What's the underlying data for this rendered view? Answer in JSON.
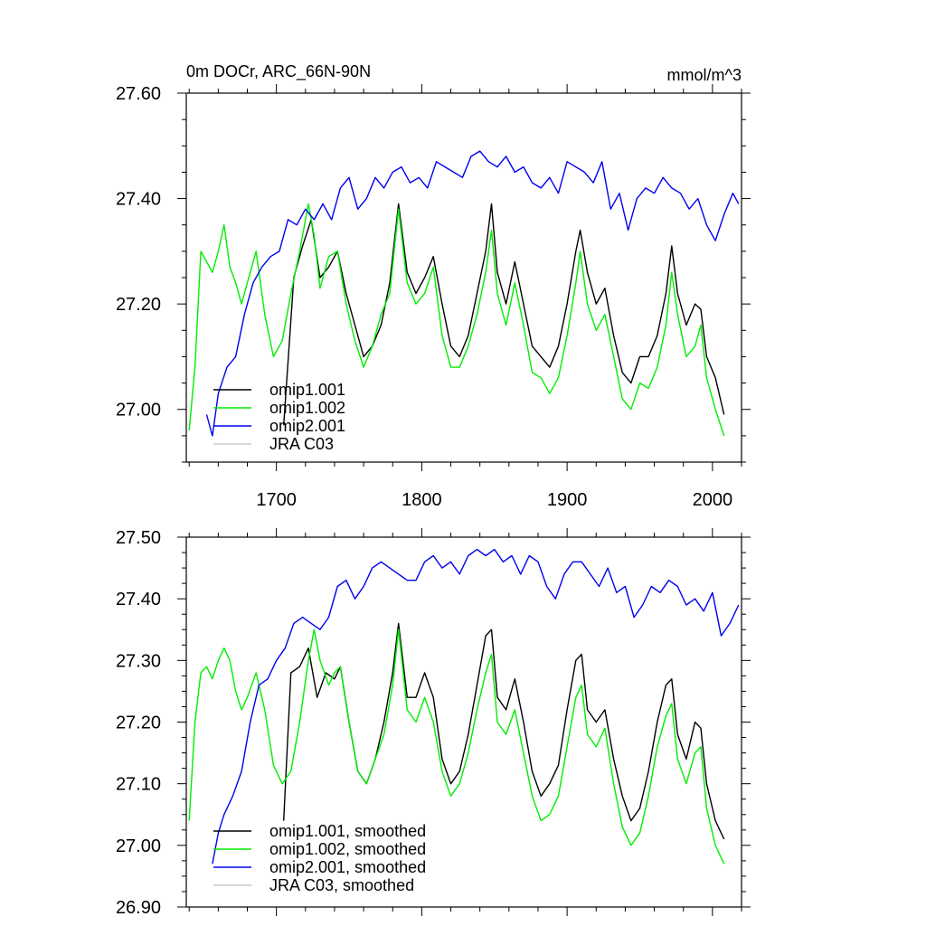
{
  "chart_data": [
    {
      "type": "line",
      "title": "0m DOCr, ARC_66N-90N",
      "units": "mmol/m^3",
      "xlim": [
        1638,
        2020
      ],
      "ylim": [
        26.9,
        27.6
      ],
      "yticks": [
        "27.00",
        "27.20",
        "27.40",
        "27.60"
      ],
      "ytick_values": [
        27.0,
        27.2,
        27.4,
        27.6
      ],
      "xticks": [
        "1700",
        "1800",
        "1900",
        "2000"
      ],
      "xtick_values": [
        1700,
        1800,
        1900,
        2000
      ],
      "legend": {
        "position": "bottom-left",
        "entries": [
          "omip1.001",
          "omip1.002",
          "omip2.001",
          "JRA C03"
        ]
      },
      "series": [
        {
          "name": "omip1.001",
          "color": "#000000",
          "x": [
            1705,
            1712,
            1718,
            1724,
            1730,
            1736,
            1742,
            1748,
            1754,
            1760,
            1766,
            1772,
            1778,
            1784,
            1790,
            1796,
            1802,
            1808,
            1814,
            1820,
            1826,
            1832,
            1838,
            1844,
            1848,
            1852,
            1858,
            1864,
            1870,
            1876,
            1882,
            1888,
            1894,
            1900,
            1906,
            1909,
            1914,
            1920,
            1926,
            1932,
            1938,
            1944,
            1950,
            1956,
            1962,
            1968,
            1972,
            1976,
            1982,
            1988,
            1992,
            1996,
            2002,
            2008
          ],
          "y": [
            26.97,
            27.25,
            27.31,
            27.36,
            27.25,
            27.27,
            27.3,
            27.22,
            27.16,
            27.1,
            27.12,
            27.16,
            27.24,
            27.39,
            27.26,
            27.22,
            27.25,
            27.29,
            27.2,
            27.12,
            27.1,
            27.14,
            27.22,
            27.3,
            27.39,
            27.26,
            27.2,
            27.28,
            27.2,
            27.12,
            27.1,
            27.08,
            27.12,
            27.2,
            27.3,
            27.34,
            27.26,
            27.2,
            27.23,
            27.14,
            27.07,
            27.05,
            27.1,
            27.1,
            27.14,
            27.22,
            27.31,
            27.22,
            27.16,
            27.2,
            27.19,
            27.1,
            27.06,
            26.99
          ]
        },
        {
          "name": "omip1.002",
          "color": "#00ee00",
          "x": [
            1640,
            1644,
            1648,
            1652,
            1656,
            1660,
            1664,
            1668,
            1672,
            1676,
            1680,
            1686,
            1692,
            1698,
            1704,
            1710,
            1716,
            1722,
            1726,
            1730,
            1736,
            1742,
            1748,
            1754,
            1760,
            1766,
            1772,
            1778,
            1784,
            1790,
            1796,
            1802,
            1808,
            1814,
            1820,
            1826,
            1832,
            1838,
            1844,
            1848,
            1852,
            1858,
            1864,
            1870,
            1876,
            1882,
            1888,
            1894,
            1900,
            1906,
            1909,
            1914,
            1920,
            1926,
            1932,
            1938,
            1944,
            1950,
            1956,
            1962,
            1968,
            1972,
            1976,
            1982,
            1988,
            1992,
            1996,
            2002,
            2008
          ],
          "y": [
            26.96,
            27.08,
            27.3,
            27.28,
            27.26,
            27.3,
            27.35,
            27.27,
            27.24,
            27.2,
            27.24,
            27.3,
            27.18,
            27.1,
            27.13,
            27.22,
            27.3,
            27.39,
            27.33,
            27.23,
            27.29,
            27.3,
            27.2,
            27.13,
            27.08,
            27.12,
            27.18,
            27.22,
            27.38,
            27.24,
            27.2,
            27.22,
            27.27,
            27.14,
            27.08,
            27.08,
            27.12,
            27.18,
            27.26,
            27.34,
            27.22,
            27.16,
            27.24,
            27.16,
            27.07,
            27.06,
            27.03,
            27.06,
            27.14,
            27.24,
            27.3,
            27.2,
            27.15,
            27.18,
            27.1,
            27.02,
            27.0,
            27.05,
            27.04,
            27.08,
            27.16,
            27.26,
            27.18,
            27.1,
            27.12,
            27.16,
            27.06,
            27.0,
            26.95
          ]
        },
        {
          "name": "omip2.001",
          "color": "#0000ee",
          "x": [
            1652,
            1656,
            1660,
            1666,
            1672,
            1678,
            1684,
            1690,
            1696,
            1702,
            1708,
            1714,
            1720,
            1726,
            1732,
            1738,
            1744,
            1750,
            1756,
            1762,
            1768,
            1774,
            1780,
            1786,
            1792,
            1798,
            1804,
            1810,
            1816,
            1822,
            1828,
            1834,
            1840,
            1846,
            1852,
            1858,
            1864,
            1870,
            1876,
            1882,
            1888,
            1894,
            1900,
            1906,
            1912,
            1918,
            1924,
            1930,
            1936,
            1942,
            1948,
            1954,
            1960,
            1966,
            1972,
            1978,
            1984,
            1990,
            1996,
            2002,
            2008,
            2014,
            2018
          ],
          "y": [
            26.99,
            26.95,
            27.03,
            27.08,
            27.1,
            27.18,
            27.24,
            27.27,
            27.29,
            27.3,
            27.36,
            27.35,
            27.38,
            27.36,
            27.39,
            27.36,
            27.42,
            27.44,
            27.38,
            27.4,
            27.44,
            27.42,
            27.45,
            27.46,
            27.43,
            27.44,
            27.42,
            27.47,
            27.46,
            27.45,
            27.44,
            27.48,
            27.49,
            27.47,
            27.46,
            27.48,
            27.45,
            27.46,
            27.43,
            27.42,
            27.44,
            27.41,
            27.47,
            27.46,
            27.45,
            27.43,
            27.47,
            27.38,
            27.41,
            27.34,
            27.4,
            27.42,
            27.41,
            27.44,
            27.42,
            27.41,
            27.38,
            27.4,
            27.35,
            27.32,
            27.37,
            27.41,
            27.39
          ]
        },
        {
          "name": "JRA C03",
          "color": "#c8c8c8",
          "x": [],
          "y": []
        }
      ]
    },
    {
      "type": "line",
      "title": "",
      "xlim": [
        1638,
        2020
      ],
      "ylim": [
        26.9,
        27.5
      ],
      "yticks": [
        "26.90",
        "27.00",
        "27.10",
        "27.20",
        "27.30",
        "27.40",
        "27.50"
      ],
      "ytick_values": [
        26.9,
        27.0,
        27.1,
        27.2,
        27.3,
        27.4,
        27.5
      ],
      "xtick_values": [
        1700,
        1800,
        1900,
        2000
      ],
      "legend": {
        "position": "bottom-left",
        "entries": [
          "omip1.001, smoothed",
          "omip1.002, smoothed",
          "omip2.001, smoothed",
          "JRA C03, smoothed"
        ]
      },
      "series": [
        {
          "name": "omip1.001, smoothed",
          "color": "#000000",
          "x": [
            1705,
            1710,
            1716,
            1722,
            1728,
            1734,
            1740,
            1744,
            1750,
            1756,
            1762,
            1768,
            1774,
            1780,
            1784,
            1790,
            1796,
            1802,
            1808,
            1814,
            1820,
            1826,
            1832,
            1838,
            1844,
            1848,
            1852,
            1858,
            1864,
            1870,
            1876,
            1882,
            1888,
            1894,
            1900,
            1906,
            1910,
            1914,
            1920,
            1926,
            1932,
            1938,
            1944,
            1950,
            1956,
            1962,
            1968,
            1972,
            1976,
            1982,
            1988,
            1992,
            1996,
            2002,
            2008
          ],
          "y": [
            27.04,
            27.28,
            27.29,
            27.32,
            27.24,
            27.28,
            27.27,
            27.29,
            27.2,
            27.12,
            27.1,
            27.14,
            27.2,
            27.28,
            27.36,
            27.24,
            27.24,
            27.28,
            27.24,
            27.14,
            27.1,
            27.12,
            27.18,
            27.26,
            27.34,
            27.35,
            27.24,
            27.22,
            27.27,
            27.2,
            27.12,
            27.08,
            27.1,
            27.13,
            27.22,
            27.3,
            27.31,
            27.22,
            27.2,
            27.22,
            27.14,
            27.08,
            27.04,
            27.06,
            27.12,
            27.2,
            27.26,
            27.27,
            27.18,
            27.14,
            27.2,
            27.19,
            27.1,
            27.04,
            27.01
          ]
        },
        {
          "name": "omip1.002, smoothed",
          "color": "#00ee00",
          "x": [
            1640,
            1644,
            1648,
            1652,
            1656,
            1660,
            1664,
            1668,
            1672,
            1676,
            1680,
            1686,
            1692,
            1698,
            1704,
            1710,
            1716,
            1722,
            1726,
            1730,
            1736,
            1740,
            1744,
            1750,
            1756,
            1762,
            1768,
            1774,
            1780,
            1784,
            1790,
            1796,
            1802,
            1808,
            1814,
            1820,
            1826,
            1832,
            1838,
            1844,
            1848,
            1852,
            1858,
            1864,
            1870,
            1876,
            1882,
            1888,
            1894,
            1900,
            1906,
            1910,
            1914,
            1920,
            1926,
            1932,
            1938,
            1944,
            1950,
            1956,
            1962,
            1968,
            1972,
            1976,
            1982,
            1988,
            1992,
            1996,
            2002,
            2008
          ],
          "y": [
            27.04,
            27.2,
            27.28,
            27.29,
            27.27,
            27.3,
            27.32,
            27.3,
            27.25,
            27.22,
            27.24,
            27.28,
            27.22,
            27.13,
            27.1,
            27.12,
            27.2,
            27.3,
            27.35,
            27.3,
            27.26,
            27.28,
            27.29,
            27.2,
            27.12,
            27.1,
            27.14,
            27.18,
            27.26,
            27.35,
            27.22,
            27.2,
            27.24,
            27.2,
            27.12,
            27.08,
            27.1,
            27.15,
            27.22,
            27.28,
            27.31,
            27.2,
            27.18,
            27.22,
            27.15,
            27.08,
            27.04,
            27.05,
            27.08,
            27.16,
            27.24,
            27.26,
            27.18,
            27.16,
            27.19,
            27.1,
            27.03,
            27.0,
            27.02,
            27.08,
            27.16,
            27.21,
            27.23,
            27.14,
            27.1,
            27.15,
            27.16,
            27.06,
            27.0,
            26.97
          ]
        },
        {
          "name": "omip2.001, smoothed",
          "color": "#0000ee",
          "x": [
            1656,
            1660,
            1664,
            1670,
            1676,
            1682,
            1688,
            1694,
            1700,
            1706,
            1712,
            1718,
            1724,
            1730,
            1736,
            1742,
            1748,
            1754,
            1760,
            1766,
            1772,
            1778,
            1784,
            1790,
            1796,
            1802,
            1808,
            1814,
            1820,
            1826,
            1832,
            1838,
            1844,
            1850,
            1856,
            1862,
            1868,
            1874,
            1880,
            1886,
            1892,
            1898,
            1904,
            1910,
            1916,
            1922,
            1928,
            1934,
            1940,
            1946,
            1952,
            1958,
            1964,
            1970,
            1976,
            1982,
            1988,
            1994,
            2000,
            2006,
            2012,
            2018
          ],
          "y": [
            26.97,
            27.02,
            27.05,
            27.08,
            27.12,
            27.2,
            27.26,
            27.27,
            27.3,
            27.32,
            27.36,
            27.37,
            27.36,
            27.35,
            27.37,
            27.42,
            27.43,
            27.4,
            27.42,
            27.45,
            27.46,
            27.45,
            27.44,
            27.43,
            27.43,
            27.46,
            27.47,
            27.45,
            27.46,
            27.44,
            27.47,
            27.48,
            27.47,
            27.48,
            27.46,
            27.47,
            27.44,
            27.47,
            27.46,
            27.42,
            27.4,
            27.44,
            27.46,
            27.46,
            27.44,
            27.42,
            27.45,
            27.41,
            27.42,
            27.37,
            27.39,
            27.42,
            27.41,
            27.43,
            27.42,
            27.39,
            27.4,
            27.38,
            27.41,
            27.34,
            27.36,
            27.39
          ]
        },
        {
          "name": "JRA C03, smoothed",
          "color": "#c8c8c8",
          "x": [],
          "y": []
        }
      ]
    }
  ]
}
